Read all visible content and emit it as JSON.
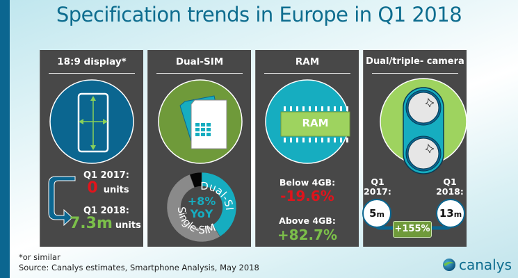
{
  "title": "Specification trends in Europe in Q1 2018",
  "panels": [
    {
      "title": "18:9 display*",
      "icon": "phone-display-icon",
      "q1_2017_label": "Q1 2017:",
      "q1_2017_value": "0",
      "q1_2017_unit": "units",
      "q1_2018_label": "Q1 2018:",
      "q1_2018_value": "7.3m",
      "q1_2018_unit": "units"
    },
    {
      "title": "Dual-SIM",
      "icon": "sim-card-icon",
      "donut": {
        "center_line1": "+8%",
        "center_line2": "YoY",
        "segments": [
          {
            "label": "Dual-SIM",
            "color": "#16adc0"
          },
          {
            "label": "Single-SIM",
            "color": "#8a8a8a"
          },
          {
            "label": "",
            "color": "#050505"
          }
        ]
      }
    },
    {
      "title": "RAM",
      "icon": "ram-chip-icon",
      "chip_label": "RAM",
      "below_label": "Below 4GB:",
      "below_value": "-19.6%",
      "above_label": "Above 4GB:",
      "above_value": "+82.7%"
    },
    {
      "title": "Dual/triple- camera",
      "icon": "dual-camera-icon",
      "q1_2017_label_1": "Q1",
      "q1_2017_label_2": "2017:",
      "q1_2017_value": "5",
      "q1_2017_unit": "m",
      "q1_2018_label_1": "Q1",
      "q1_2018_label_2": "2018:",
      "q1_2018_value": "13",
      "q1_2018_unit": "m",
      "growth": "+155%"
    }
  ],
  "footnote": "*or similar",
  "source": "Source: Canalys estimates, Smartphone Analysis, May 2018",
  "logo_text": "canalys",
  "colors": {
    "title": "#0e6d8f",
    "panel_bg": "#484848",
    "blue": "#0b6690",
    "teal": "#16adc0",
    "green": "#6f9a3a",
    "light_green": "#9ed35f",
    "red": "#e0141c",
    "positive_green": "#7cc04a"
  }
}
